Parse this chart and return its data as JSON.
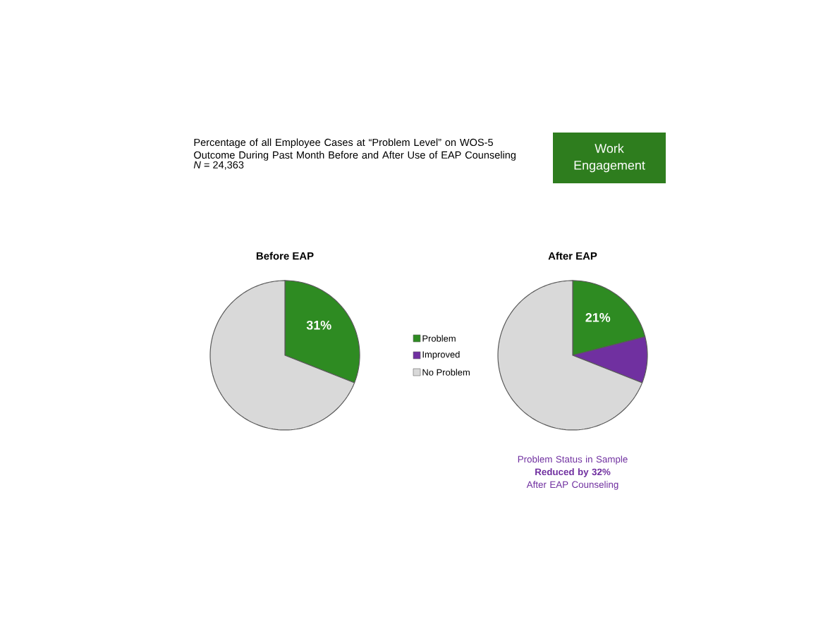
{
  "chart_data": [
    {
      "type": "pie",
      "title": "Before EAP",
      "categories": [
        "Problem",
        "Improved",
        "No Problem"
      ],
      "values": [
        31,
        0,
        69
      ],
      "colors": [
        "#2e8b22",
        "#7030a0",
        "#d9d9d9"
      ],
      "value_labels": [
        "31%",
        null,
        null
      ],
      "legend": "right",
      "annotations": [
        "Percentage of all Employee Cases at “Problem Level” on WOS-5 Outcome During Past Month Before and After Use of EAP Counseling",
        "*N* = 24,363",
        "Work Engagement"
      ]
    },
    {
      "type": "pie",
      "title": "After EAP",
      "categories": [
        null,
        null,
        null
      ],
      "values": [
        21,
        10,
        69
      ],
      "colors": [
        "#2e8b22",
        "#7030a0",
        "#d9d9d9"
      ],
      "value_labels": [
        "21%",
        null,
        null
      ],
      "annotations": [
        "Problem Status in Sample **Reduced by 32%** After EAP Counseling"
      ]
    }
  ]
}
